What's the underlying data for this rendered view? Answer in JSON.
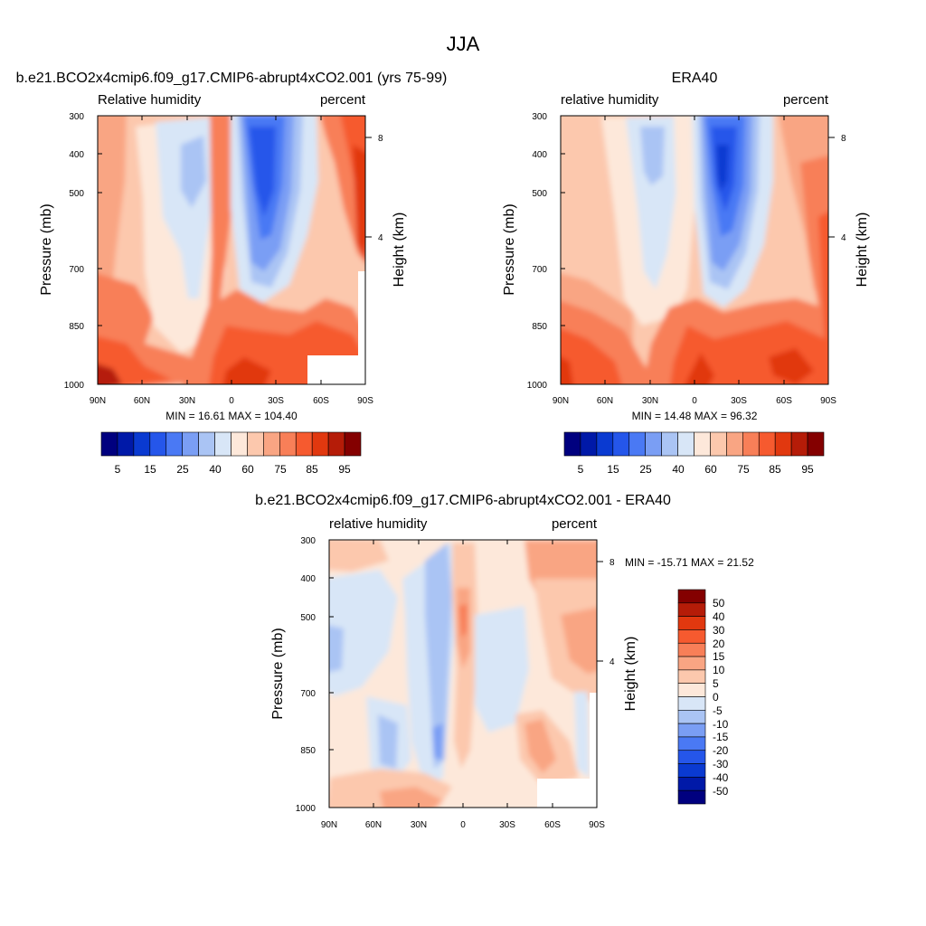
{
  "figure": {
    "title": "JJA"
  },
  "chart_data": [
    {
      "type": "heatmap",
      "id": "model",
      "title": "b.e21.BCO2x4cmip6.f09_g17.CMIP6-abrupt4xCO2.001 (yrs 75-99)",
      "left_string": "Relative humidity",
      "right_string": "percent",
      "ylabel": "Pressure (mb)",
      "ylabel_right": "Height (km)",
      "x_ticks": [
        "90N",
        "60N",
        "30N",
        "0",
        "30S",
        "60S",
        "90S"
      ],
      "x_range": [
        90,
        -90
      ],
      "y_ticks": [
        "300",
        "400",
        "500",
        "700",
        "850",
        "1000"
      ],
      "y_range": [
        300,
        1000
      ],
      "height_ticks": [
        "8",
        "4"
      ],
      "stats": "MIN =  16.61  MAX = 104.40",
      "colorbar_labels": [
        "5",
        "15",
        "25",
        "40",
        "60",
        "75",
        "85",
        "95"
      ],
      "colormap": "abs"
    },
    {
      "type": "heatmap",
      "id": "obs",
      "title": "ERA40",
      "left_string": "relative humidity",
      "right_string": "percent",
      "ylabel": "Pressure (mb)",
      "ylabel_right": "Height (km)",
      "x_ticks": [
        "90N",
        "60N",
        "30N",
        "0",
        "30S",
        "60S",
        "90S"
      ],
      "x_range": [
        90,
        -90
      ],
      "y_ticks": [
        "300",
        "400",
        "500",
        "700",
        "850",
        "1000"
      ],
      "y_range": [
        300,
        1000
      ],
      "height_ticks": [
        "8",
        "4"
      ],
      "stats": "MIN =  14.48  MAX =  96.32",
      "colorbar_labels": [
        "5",
        "15",
        "25",
        "40",
        "60",
        "75",
        "85",
        "95"
      ],
      "colormap": "abs"
    },
    {
      "type": "heatmap",
      "id": "diff",
      "title": "b.e21.BCO2x4cmip6.f09_g17.CMIP6-abrupt4xCO2.001 - ERA40",
      "left_string": "relative humidity",
      "right_string": "percent",
      "ylabel": "Pressure (mb)",
      "ylabel_right": "Height (km)",
      "x_ticks": [
        "90N",
        "60N",
        "30N",
        "0",
        "30S",
        "60S",
        "90S"
      ],
      "x_range": [
        90,
        -90
      ],
      "y_ticks": [
        "300",
        "400",
        "500",
        "700",
        "850",
        "1000"
      ],
      "y_range": [
        300,
        1000
      ],
      "height_ticks": [
        "8",
        "4"
      ],
      "stats": "MIN = -15.71  MAX =  21.52",
      "colorbar_labels": [
        "50",
        "40",
        "30",
        "20",
        "15",
        "10",
        "5",
        "0",
        "-5",
        "-10",
        "-15",
        "-20",
        "-30",
        "-40",
        "-50"
      ],
      "colormap": "diff"
    }
  ],
  "palettes": {
    "abs": [
      "#00007f",
      "#0019a8",
      "#0a3ad1",
      "#2556ea",
      "#4a79f4",
      "#7a9ef4",
      "#aac4f4",
      "#d8e6f7",
      "#fde8da",
      "#fcc8ad",
      "#f9a583",
      "#f87f58",
      "#f65a2f",
      "#e1380f",
      "#b51c08",
      "#840000"
    ],
    "diff": [
      "#840000",
      "#b51c08",
      "#e1380f",
      "#f65a2f",
      "#f87f58",
      "#f9a583",
      "#fcc8ad",
      "#fde8da",
      "#d8e6f7",
      "#aac4f4",
      "#7a9ef4",
      "#4a79f4",
      "#2556ea",
      "#0a3ad1",
      "#0019a8",
      "#00007f"
    ]
  }
}
